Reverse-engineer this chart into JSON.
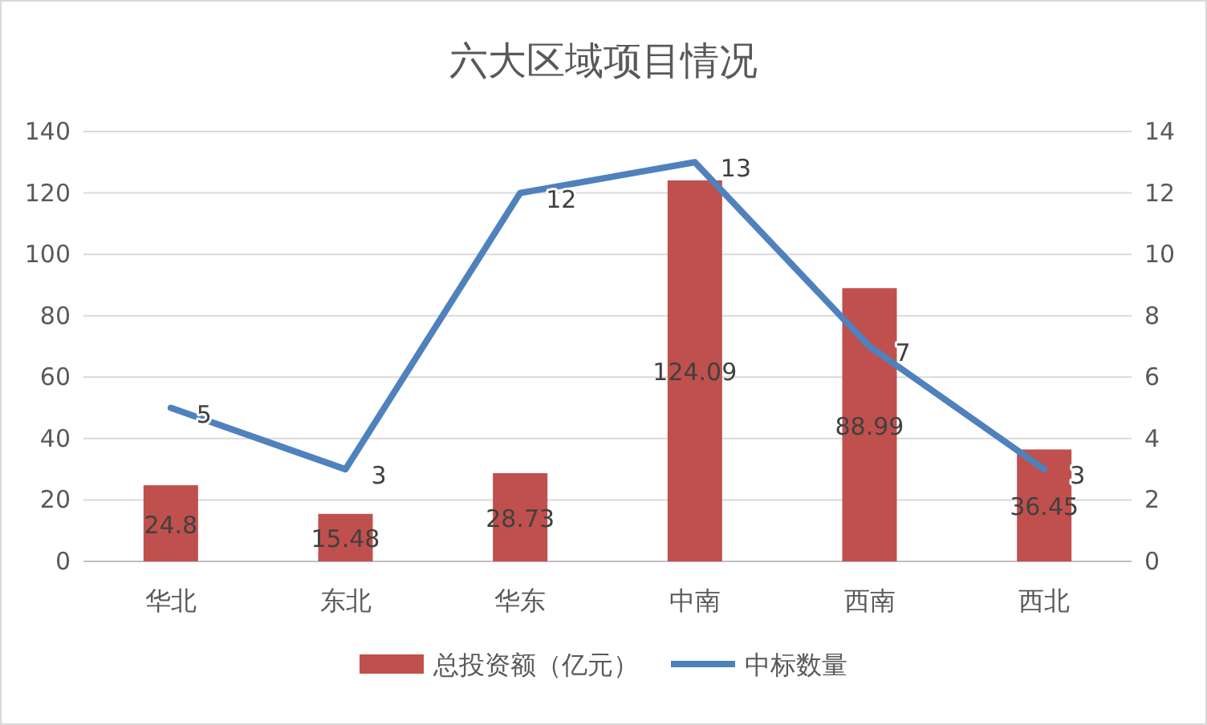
{
  "chart_data": {
    "type": "bar",
    "title": "六大区域项目情况",
    "categories": [
      "华北",
      "东北",
      "华东",
      "中南",
      "西南",
      "西北"
    ],
    "series": [
      {
        "name": "总投资额（亿元）",
        "color": "#c0504d",
        "values": [
          24.8,
          15.48,
          28.73,
          124.09,
          88.99,
          36.45
        ]
      },
      {
        "name": "中标数量",
        "type": "line",
        "axis": "y2",
        "color": "#4f81bd",
        "values": [
          5,
          3,
          12,
          13,
          7,
          3
        ]
      }
    ],
    "ylim": [
      0,
      140
    ],
    "yticks": [
      0,
      20,
      40,
      60,
      80,
      100,
      120,
      140
    ],
    "y2lim": [
      0,
      14
    ],
    "y2ticks": [
      0,
      2,
      4,
      6,
      8,
      10,
      12,
      14
    ],
    "grid": "y",
    "legend": "bottom",
    "data_labels": true,
    "marker": "none",
    "line_style": "solid"
  }
}
